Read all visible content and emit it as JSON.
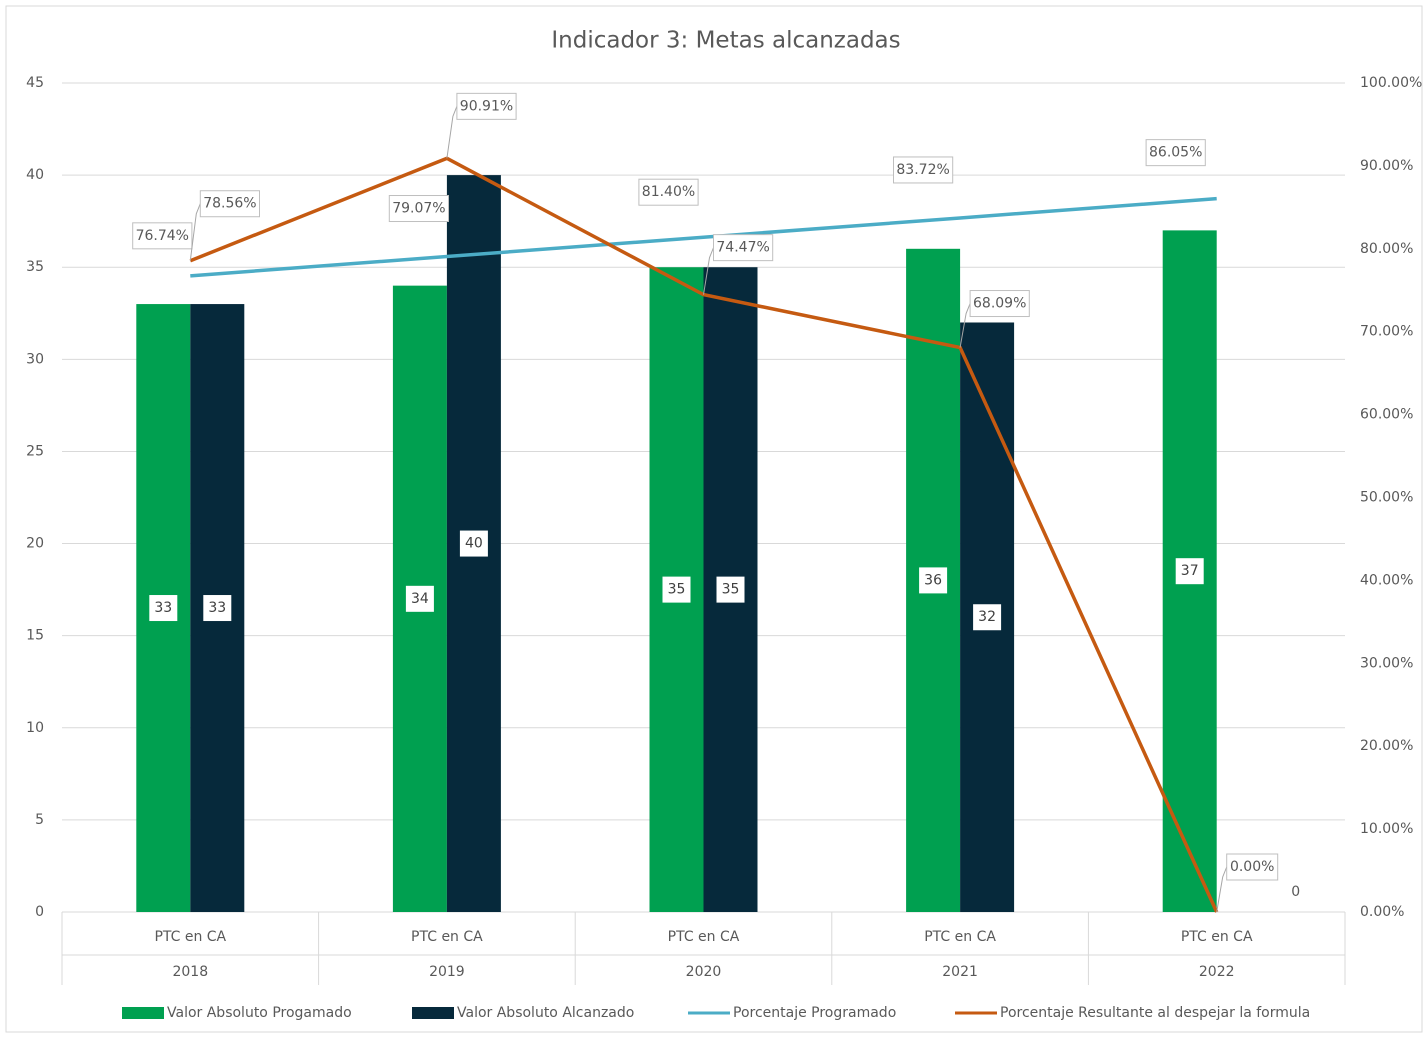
{
  "chart_data": {
    "type": "bar_line_combo",
    "title": "Indicador 3: Metas alcanzadas",
    "categories": [
      "2018",
      "2019",
      "2020",
      "2021",
      "2022"
    ],
    "subcategories": [
      "PTC en CA",
      "PTC en CA",
      "PTC en CA",
      "PTC en CA",
      "PTC en CA"
    ],
    "series": [
      {
        "name": "Valor Absoluto Progamado",
        "type": "bar",
        "color": "#00a050",
        "values": [
          33,
          34,
          35,
          36,
          37
        ]
      },
      {
        "name": "Valor Absoluto Alcanzado",
        "type": "bar",
        "color": "#06293b",
        "values": [
          33,
          40,
          35,
          32,
          0
        ]
      },
      {
        "name": "Porcentaje Programado",
        "type": "line",
        "axis": "y2",
        "color": "#4bacc6",
        "values": [
          76.74,
          79.07,
          81.4,
          83.72,
          86.05
        ],
        "value_labels": [
          "76.74%",
          "79.07%",
          "81.40%",
          "83.72%",
          "86.05%"
        ]
      },
      {
        "name": "Porcentaje Resultante al despejar la formula",
        "type": "line",
        "axis": "y2",
        "color": "#c55a11",
        "values": [
          78.56,
          90.91,
          74.47,
          68.09,
          0
        ],
        "value_labels": [
          "78.56%",
          "90.91%",
          "74.47%",
          "68.09%",
          "0.00%"
        ]
      }
    ],
    "ylim": [
      0,
      45
    ],
    "yticks": [
      0,
      5,
      10,
      15,
      20,
      25,
      30,
      35,
      40,
      45
    ],
    "y2lim": [
      0,
      100
    ],
    "y2ticks": [
      {
        "value": 0,
        "label": "0.00%"
      },
      {
        "value": 10,
        "label": "10.00%"
      },
      {
        "value": 20,
        "label": "20.00%"
      },
      {
        "value": 30,
        "label": "30.00%"
      },
      {
        "value": 40,
        "label": "40.00%"
      },
      {
        "value": 50,
        "label": "50.00%"
      },
      {
        "value": 60,
        "label": "60.00%"
      },
      {
        "value": 70,
        "label": "70.00%"
      },
      {
        "value": 80,
        "label": "80.00%"
      },
      {
        "value": 90,
        "label": "90.00%"
      },
      {
        "value": 100,
        "label": "100.00%"
      }
    ],
    "grid": true,
    "legend": "bottom"
  }
}
